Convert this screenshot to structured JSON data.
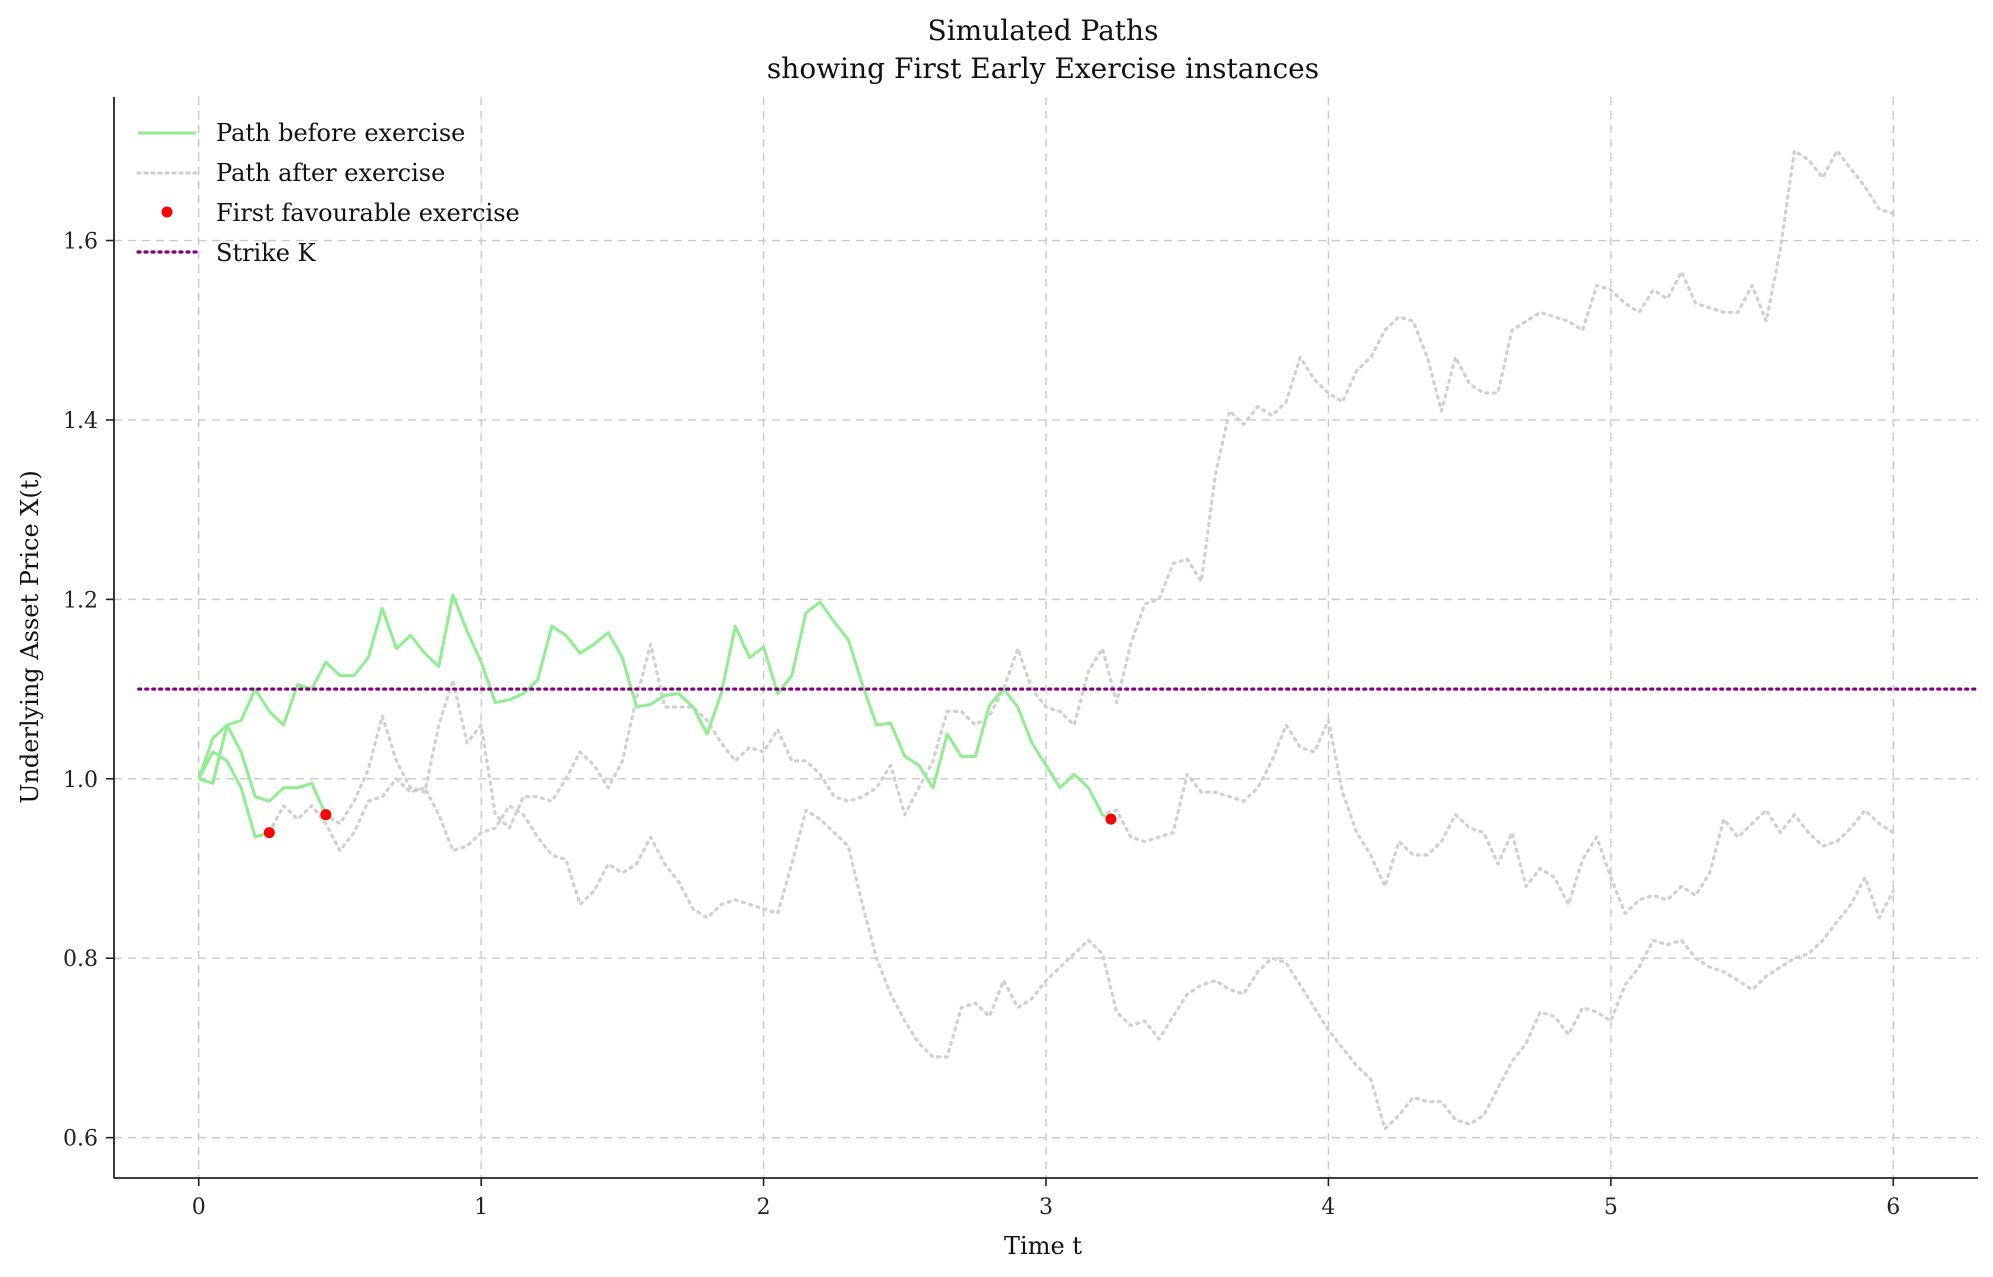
{
  "chart_data": {
    "type": "line",
    "title": "Simulated Paths",
    "subtitle": "showing First Early Exercise instances",
    "xlabel": "Time t",
    "ylabel": "Underlying Asset Price X(t)",
    "xlim": [
      -0.3,
      6.3
    ],
    "ylim": [
      0.555,
      1.76
    ],
    "xticks": [
      "0",
      "1",
      "2",
      "3",
      "4",
      "5",
      "6"
    ],
    "yticks": [
      "0.6",
      "0.8",
      "1.0",
      "1.2",
      "1.4",
      "1.6"
    ],
    "grid": true,
    "legend_position": "top-left",
    "legend": [
      {
        "label": "Path before exercise",
        "style": "solid-line",
        "color": "#90ee90"
      },
      {
        "label": "Path after exercise",
        "style": "dotted-line",
        "color": "#d3d3d3"
      },
      {
        "label": "First favourable exercise",
        "style": "dot",
        "color": "#ff0000"
      },
      {
        "label": "Strike K",
        "style": "dotted-line",
        "color": "#800080"
      }
    ],
    "strike": 1.1,
    "colors": {
      "before": "#90ee90",
      "after": "#d0d0d4",
      "exercise": "#ff0000",
      "strike": "#800080"
    },
    "series": [
      {
        "exercise_time": 0.25,
        "exercise_value": 0.94,
        "x": [
          0,
          0.05,
          0.1,
          0.15,
          0.2,
          0.25,
          0.3,
          0.35,
          0.4,
          0.45,
          0.5,
          0.55,
          0.6,
          0.65,
          0.7,
          0.75,
          0.8,
          0.85,
          0.9,
          0.95,
          1.0,
          1.05,
          1.1,
          1.15,
          1.2,
          1.25,
          1.3,
          1.35,
          1.4,
          1.45,
          1.5,
          1.55,
          1.6,
          1.65,
          1.7,
          1.75,
          1.8,
          1.85,
          1.9,
          1.95,
          2.0,
          2.05,
          2.1,
          2.15,
          2.2,
          2.25,
          2.3,
          2.35,
          2.4,
          2.45,
          2.5,
          2.55,
          2.6,
          2.65,
          2.7,
          2.75,
          2.8,
          2.85,
          2.9,
          2.95,
          3.0,
          3.05,
          3.1,
          3.15,
          3.2,
          3.25,
          3.3,
          3.35,
          3.4,
          3.45,
          3.5,
          3.55,
          3.6,
          3.65,
          3.7,
          3.75,
          3.8,
          3.85,
          3.9,
          3.95,
          4.0,
          4.05,
          4.1,
          4.15,
          4.2,
          4.25,
          4.3,
          4.35,
          4.4,
          4.45,
          4.5,
          4.55,
          4.6,
          4.65,
          4.7,
          4.75,
          4.8,
          4.85,
          4.9,
          4.95,
          5.0,
          5.05,
          5.1,
          5.15,
          5.2,
          5.25,
          5.3,
          5.35,
          5.4,
          5.45,
          5.5,
          5.55,
          5.6,
          5.65,
          5.7,
          5.75,
          5.8,
          5.85,
          5.9,
          5.95,
          6.0
        ],
        "y": [
          1.0,
          1.03,
          1.02,
          0.99,
          0.935,
          0.94,
          0.97,
          0.955,
          0.97,
          0.95,
          0.92,
          0.94,
          0.975,
          0.98,
          1.0,
          0.985,
          0.99,
          0.96,
          0.92,
          0.925,
          0.94,
          0.945,
          0.97,
          0.96,
          0.935,
          0.915,
          0.91,
          0.86,
          0.875,
          0.905,
          0.895,
          0.905,
          0.935,
          0.905,
          0.885,
          0.855,
          0.845,
          0.86,
          0.865,
          0.86,
          0.855,
          0.85,
          0.905,
          0.965,
          0.955,
          0.94,
          0.925,
          0.86,
          0.8,
          0.76,
          0.73,
          0.705,
          0.69,
          0.69,
          0.745,
          0.75,
          0.735,
          0.775,
          0.745,
          0.755,
          0.775,
          0.79,
          0.805,
          0.82,
          0.805,
          0.74,
          0.725,
          0.73,
          0.71,
          0.735,
          0.76,
          0.77,
          0.775,
          0.765,
          0.76,
          0.785,
          0.8,
          0.795,
          0.77,
          0.745,
          0.72,
          0.7,
          0.68,
          0.665,
          0.61,
          0.625,
          0.645,
          0.64,
          0.64,
          0.62,
          0.615,
          0.625,
          0.655,
          0.685,
          0.705,
          0.74,
          0.735,
          0.715,
          0.745,
          0.74,
          0.73,
          0.77,
          0.79,
          0.82,
          0.815,
          0.82,
          0.8,
          0.79,
          0.785,
          0.775,
          0.765,
          0.78,
          0.79,
          0.8,
          0.805,
          0.82,
          0.84,
          0.86,
          0.89,
          0.845,
          0.875
        ]
      },
      {
        "exercise_time": 0.45,
        "exercise_value": 0.96,
        "x": [
          0,
          0.05,
          0.1,
          0.15,
          0.2,
          0.25,
          0.3,
          0.35,
          0.4,
          0.45,
          0.5,
          0.55,
          0.6,
          0.65,
          0.7,
          0.75,
          0.8,
          0.85,
          0.9,
          0.95,
          1.0,
          1.05,
          1.1,
          1.15,
          1.2,
          1.25,
          1.3,
          1.35,
          1.4,
          1.45,
          1.5,
          1.55,
          1.6,
          1.65,
          1.7,
          1.75,
          1.8,
          1.85,
          1.9,
          1.95,
          2.0,
          2.05,
          2.1,
          2.15,
          2.2,
          2.25,
          2.3,
          2.35,
          2.4,
          2.45,
          2.5,
          2.55,
          2.6,
          2.65,
          2.7,
          2.75,
          2.8,
          2.85,
          2.9,
          2.95,
          3.0,
          3.05,
          3.1,
          3.15,
          3.2,
          3.25,
          3.3,
          3.35,
          3.4,
          3.45,
          3.5,
          3.55,
          3.6,
          3.65,
          3.7,
          3.75,
          3.8,
          3.85,
          3.9,
          3.95,
          4.0,
          4.05,
          4.1,
          4.15,
          4.2,
          4.25,
          4.3,
          4.35,
          4.4,
          4.45,
          4.5,
          4.55,
          4.6,
          4.65,
          4.7,
          4.75,
          4.8,
          4.85,
          4.9,
          4.95,
          5.0,
          5.05,
          5.1,
          5.15,
          5.2,
          5.25,
          5.3,
          5.35,
          5.4,
          5.45,
          5.5,
          5.55,
          5.6,
          5.65,
          5.7,
          5.75,
          5.8,
          5.85,
          5.9,
          5.95,
          6.0
        ],
        "y": [
          1.0,
          1.045,
          1.06,
          1.03,
          0.98,
          0.975,
          0.99,
          0.99,
          0.995,
          0.96,
          0.95,
          0.975,
          1.01,
          1.07,
          1.02,
          0.99,
          0.985,
          1.06,
          1.11,
          1.04,
          1.06,
          0.96,
          0.945,
          0.98,
          0.98,
          0.975,
          1.0,
          1.03,
          1.015,
          0.99,
          1.02,
          1.09,
          1.15,
          1.08,
          1.08,
          1.08,
          1.065,
          1.04,
          1.02,
          1.035,
          1.03,
          1.055,
          1.02,
          1.02,
          1.005,
          0.98,
          0.975,
          0.98,
          0.99,
          1.015,
          0.96,
          0.99,
          1.02,
          1.075,
          1.075,
          1.06,
          1.07,
          1.1,
          1.145,
          1.1,
          1.08,
          1.075,
          1.06,
          1.12,
          1.145,
          1.085,
          1.15,
          1.195,
          1.2,
          1.24,
          1.245,
          1.22,
          1.34,
          1.41,
          1.395,
          1.415,
          1.405,
          1.42,
          1.47,
          1.445,
          1.43,
          1.42,
          1.455,
          1.47,
          1.5,
          1.515,
          1.51,
          1.47,
          1.41,
          1.47,
          1.44,
          1.43,
          1.43,
          1.5,
          1.51,
          1.52,
          1.515,
          1.51,
          1.5,
          1.55,
          1.545,
          1.53,
          1.52,
          1.545,
          1.535,
          1.565,
          1.53,
          1.525,
          1.52,
          1.52,
          1.55,
          1.51,
          1.59,
          1.7,
          1.69,
          1.67,
          1.7,
          1.68,
          1.66,
          1.635,
          1.63
        ]
      },
      {
        "exercise_time": 3.23,
        "exercise_value": 0.955,
        "x": [
          0,
          0.05,
          0.1,
          0.15,
          0.2,
          0.25,
          0.3,
          0.35,
          0.4,
          0.45,
          0.5,
          0.55,
          0.6,
          0.65,
          0.7,
          0.75,
          0.8,
          0.85,
          0.9,
          0.95,
          1.0,
          1.05,
          1.1,
          1.15,
          1.2,
          1.25,
          1.3,
          1.35,
          1.4,
          1.45,
          1.5,
          1.55,
          1.6,
          1.65,
          1.7,
          1.75,
          1.8,
          1.85,
          1.9,
          1.95,
          2.0,
          2.05,
          2.1,
          2.15,
          2.2,
          2.25,
          2.3,
          2.35,
          2.4,
          2.45,
          2.5,
          2.55,
          2.6,
          2.65,
          2.7,
          2.75,
          2.8,
          2.85,
          2.9,
          2.95,
          3.0,
          3.05,
          3.1,
          3.15,
          3.2,
          3.25,
          3.3,
          3.35,
          3.4,
          3.45,
          3.5,
          3.55,
          3.6,
          3.65,
          3.7,
          3.75,
          3.8,
          3.85,
          3.9,
          3.95,
          4.0,
          4.05,
          4.1,
          4.15,
          4.2,
          4.25,
          4.3,
          4.35,
          4.4,
          4.45,
          4.5,
          4.55,
          4.6,
          4.65,
          4.7,
          4.75,
          4.8,
          4.85,
          4.9,
          4.95,
          5.0,
          5.05,
          5.1,
          5.15,
          5.2,
          5.25,
          5.3,
          5.35,
          5.4,
          5.45,
          5.5,
          5.55,
          5.6,
          5.65,
          5.7,
          5.75,
          5.8,
          5.85,
          5.9,
          5.95,
          6.0
        ],
        "y": [
          1.0,
          0.995,
          1.06,
          1.065,
          1.1,
          1.075,
          1.06,
          1.105,
          1.1,
          1.13,
          1.115,
          1.115,
          1.135,
          1.19,
          1.145,
          1.16,
          1.14,
          1.125,
          1.205,
          1.165,
          1.13,
          1.085,
          1.088,
          1.095,
          1.11,
          1.17,
          1.16,
          1.14,
          1.15,
          1.163,
          1.135,
          1.08,
          1.083,
          1.093,
          1.095,
          1.08,
          1.05,
          1.095,
          1.17,
          1.135,
          1.147,
          1.095,
          1.115,
          1.185,
          1.197,
          1.175,
          1.155,
          1.105,
          1.06,
          1.062,
          1.025,
          1.015,
          0.99,
          1.05,
          1.025,
          1.025,
          1.082,
          1.1,
          1.08,
          1.04,
          1.015,
          0.99,
          1.005,
          0.99,
          0.96,
          0.965,
          0.935,
          0.93,
          0.935,
          0.94,
          1.005,
          0.985,
          0.985,
          0.98,
          0.975,
          0.99,
          1.02,
          1.06,
          1.035,
          1.03,
          1.065,
          0.985,
          0.94,
          0.915,
          0.88,
          0.93,
          0.915,
          0.915,
          0.93,
          0.96,
          0.945,
          0.94,
          0.905,
          0.94,
          0.88,
          0.9,
          0.89,
          0.86,
          0.91,
          0.935,
          0.89,
          0.85,
          0.865,
          0.87,
          0.865,
          0.88,
          0.87,
          0.895,
          0.955,
          0.935,
          0.95,
          0.965,
          0.94,
          0.96,
          0.94,
          0.925,
          0.93,
          0.945,
          0.965,
          0.95,
          0.94
        ]
      }
    ]
  }
}
